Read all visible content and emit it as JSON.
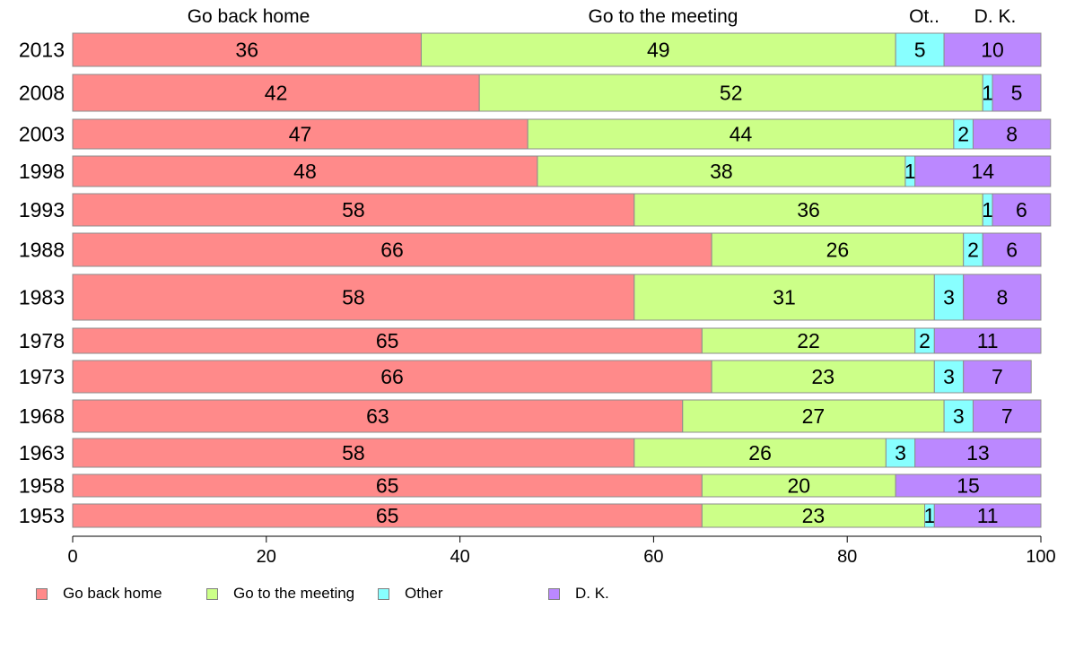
{
  "chart_data": {
    "type": "bar",
    "orientation": "horizontal",
    "stacked": true,
    "categories": [
      "2013",
      "2008",
      "2003",
      "1998",
      "1993",
      "1988",
      "1983",
      "1978",
      "1973",
      "1968",
      "1963",
      "1958",
      "1953"
    ],
    "series": [
      {
        "name": "Go back home",
        "color": "#FF8A8A",
        "values": [
          36,
          42,
          47,
          48,
          58,
          66,
          58,
          65,
          66,
          63,
          58,
          65,
          65
        ]
      },
      {
        "name": "Go to the meeting",
        "color": "#CCFF88",
        "values": [
          49,
          52,
          44,
          38,
          36,
          26,
          31,
          22,
          23,
          27,
          26,
          20,
          23
        ]
      },
      {
        "name": "Other",
        "color": "#88FFFF",
        "values": [
          5,
          1,
          2,
          1,
          1,
          2,
          3,
          2,
          3,
          3,
          3,
          0,
          1
        ]
      },
      {
        "name": "D. K.",
        "color": "#BB88FF",
        "values": [
          10,
          5,
          8,
          14,
          6,
          6,
          8,
          11,
          7,
          7,
          13,
          15,
          11
        ]
      }
    ],
    "column_headers": [
      "Go back home",
      "Go to the meeting",
      "Ot..",
      "D. K."
    ],
    "legend_labels": [
      "Go back home",
      "Go to the meeting",
      "Other",
      "D. K."
    ],
    "xlim": [
      0,
      100
    ],
    "x_ticks": [
      "0",
      "20",
      "40",
      "60",
      "80",
      "100"
    ],
    "grid": false,
    "legend_position": "bottom"
  }
}
